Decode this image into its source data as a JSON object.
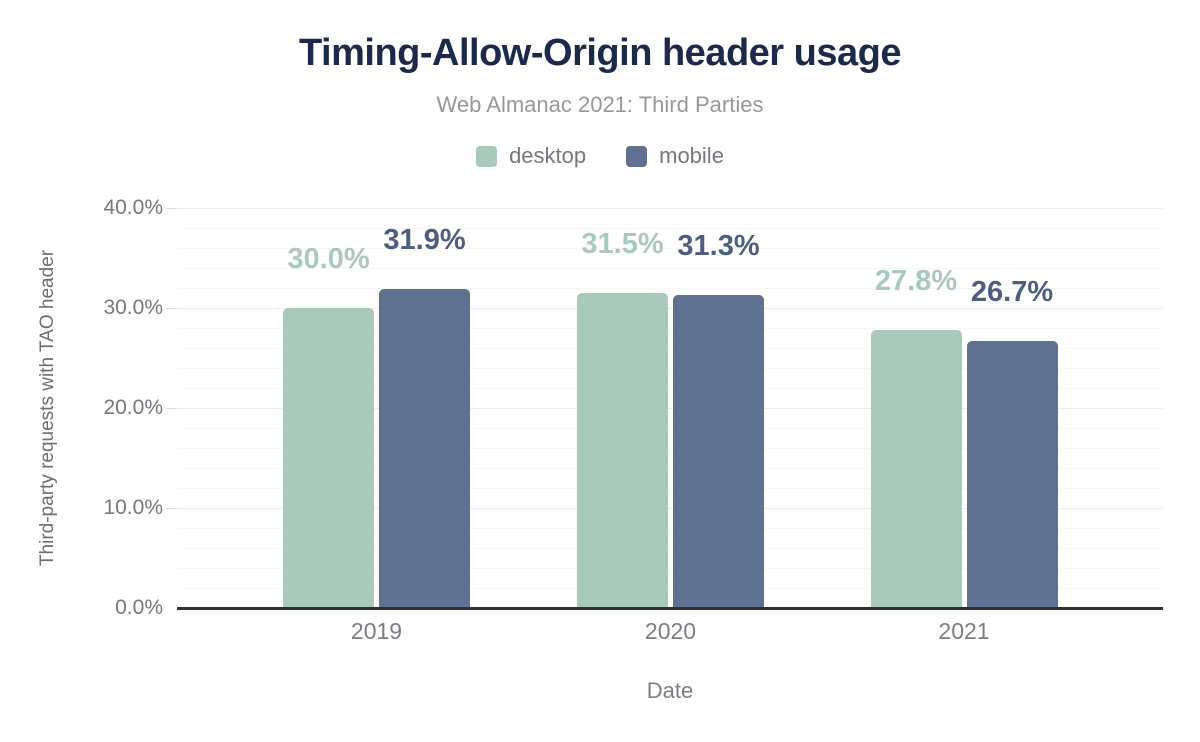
{
  "title": "Timing-Allow-Origin header usage",
  "subtitle": "Web Almanac 2021: Third Parties",
  "legend": {
    "position": "top",
    "items": [
      {
        "label": "desktop",
        "color": "#a9cabb"
      },
      {
        "label": "mobile",
        "color": "#5f7190"
      }
    ]
  },
  "chart_data": {
    "type": "bar",
    "title": "Timing-Allow-Origin header usage",
    "subtitle": "Web Almanac 2021: Third Parties",
    "categories": [
      "2019",
      "2020",
      "2021"
    ],
    "series": [
      {
        "name": "desktop",
        "values": [
          30.0,
          31.5,
          27.8
        ],
        "labels": [
          "30.0%",
          "31.5%",
          "27.8%"
        ],
        "bar_color": "#a9cabb",
        "label_color": "#a9cabb"
      },
      {
        "name": "mobile",
        "values": [
          31.9,
          31.3,
          26.7
        ],
        "labels": [
          "31.9%",
          "31.3%",
          "26.7%"
        ],
        "bar_color": "#5f7190",
        "label_color": "#4c5f80"
      }
    ],
    "xlabel": "Date",
    "ylabel": "Third-party requests with TAO header",
    "ylim": [
      0,
      40
    ],
    "yticks": [
      {
        "value": 0,
        "label": "0.0%"
      },
      {
        "value": 10,
        "label": "10.0%"
      },
      {
        "value": 20,
        "label": "20.0%"
      },
      {
        "value": 30,
        "label": "30.0%"
      },
      {
        "value": 40,
        "label": "40.0%"
      }
    ],
    "grid": {
      "minor_step": 2,
      "major_step": 10,
      "on": true
    },
    "legend_position": "top",
    "colors": {
      "title": "#1b2a4a",
      "subtitle": "#97989d",
      "axis_text": "#75787e",
      "axis_line": "#2f3136",
      "grid_major": "#ececec",
      "grid_minor": "#f6f6f6"
    }
  }
}
